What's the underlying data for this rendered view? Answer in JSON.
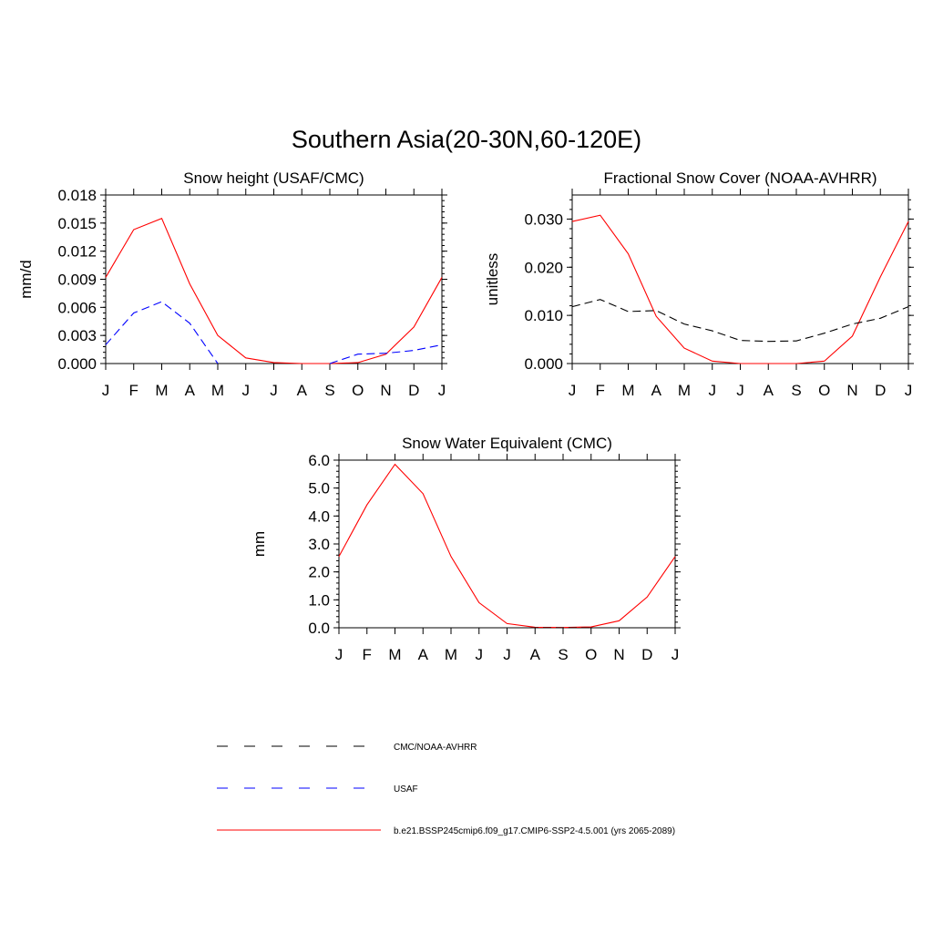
{
  "figure": {
    "title": "Southern Asia(20-30N,60-120E)"
  },
  "legend": [
    {
      "label": "CMC/NOAA-AVHRR",
      "color": "#000000",
      "dash": "dashed"
    },
    {
      "label": "USAF",
      "color": "#0000ff",
      "dash": "dashed"
    },
    {
      "label": "b.e21.BSSP245cmip6.f09_g17.CMIP6-SSP2-4.5.001 (yrs 2065-2089)",
      "color": "#ff0000",
      "dash": "solid"
    }
  ],
  "chart_data": [
    {
      "type": "line",
      "title": "Snow height (USAF/CMC)",
      "xlabel": "",
      "ylabel": "mm/d",
      "categories": [
        "J",
        "F",
        "M",
        "A",
        "M",
        "J",
        "J",
        "A",
        "S",
        "O",
        "N",
        "D",
        "J"
      ],
      "ylim": [
        0,
        0.018
      ],
      "yticks": [
        "0.000",
        "0.003",
        "0.006",
        "0.009",
        "0.012",
        "0.015",
        "0.018"
      ],
      "grid": false,
      "series": [
        {
          "name": "b.e21.BSSP245cmip6.f09_g17.CMIP6-SSP2-4.5.001 (yrs 2065-2089)",
          "color": "#ff0000",
          "dash": "solid",
          "values": [
            0.0092,
            0.0143,
            0.0155,
            0.0085,
            0.003,
            0.0006,
            0.0001,
            0.0,
            0.0,
            0.0001,
            0.001,
            0.0039,
            0.0092
          ]
        },
        {
          "name": "USAF",
          "color": "#0000ff",
          "dash": "dashed",
          "values": [
            0.002,
            0.0054,
            0.0066,
            0.0043,
            0.0,
            null,
            null,
            null,
            0.0,
            0.001,
            0.0011,
            0.0014,
            0.002
          ]
        }
      ]
    },
    {
      "type": "line",
      "title": "Fractional Snow Cover (NOAA-AVHRR)",
      "xlabel": "",
      "ylabel": "unitless",
      "categories": [
        "J",
        "F",
        "M",
        "A",
        "M",
        "J",
        "J",
        "A",
        "S",
        "O",
        "N",
        "D",
        "J"
      ],
      "ylim": [
        0,
        0.035
      ],
      "yticks": [
        "0.000",
        "0.010",
        "0.020",
        "0.030"
      ],
      "grid": false,
      "series": [
        {
          "name": "b.e21.BSSP245cmip6.f09_g17.CMIP6-SSP2-4.5.001 (yrs 2065-2089)",
          "color": "#ff0000",
          "dash": "solid",
          "values": [
            0.0295,
            0.0308,
            0.0228,
            0.0098,
            0.0032,
            0.0005,
            0.0,
            0.0,
            0.0,
            0.0005,
            0.0057,
            0.018,
            0.0295
          ]
        },
        {
          "name": "CMC/NOAA-AVHRR",
          "color": "#000000",
          "dash": "dashed",
          "values": [
            0.0118,
            0.0133,
            0.0108,
            0.011,
            0.0082,
            0.0068,
            0.0048,
            0.0046,
            0.0047,
            0.0063,
            0.0082,
            0.0094,
            0.0118
          ]
        }
      ]
    },
    {
      "type": "line",
      "title": "Snow Water Equivalent (CMC)",
      "xlabel": "",
      "ylabel": "mm",
      "categories": [
        "J",
        "F",
        "M",
        "A",
        "M",
        "J",
        "J",
        "A",
        "S",
        "O",
        "N",
        "D",
        "J"
      ],
      "ylim": [
        0,
        6.0
      ],
      "yticks": [
        "0.0",
        "1.0",
        "2.0",
        "3.0",
        "4.0",
        "5.0",
        "6.0"
      ],
      "grid": false,
      "series": [
        {
          "name": "b.e21.BSSP245cmip6.f09_g17.CMIP6-SSP2-4.5.001 (yrs 2065-2089)",
          "color": "#ff0000",
          "dash": "solid",
          "values": [
            2.55,
            4.4,
            5.85,
            4.8,
            2.55,
            0.9,
            0.15,
            0.02,
            0.01,
            0.03,
            0.25,
            1.1,
            2.55
          ]
        },
        {
          "name": "CMC/NOAA-AVHRR",
          "color": "#000000",
          "dash": "dashed",
          "values": [
            0,
            0,
            0,
            0,
            0,
            0,
            0,
            0,
            0,
            0,
            0,
            0,
            0
          ]
        }
      ]
    }
  ]
}
